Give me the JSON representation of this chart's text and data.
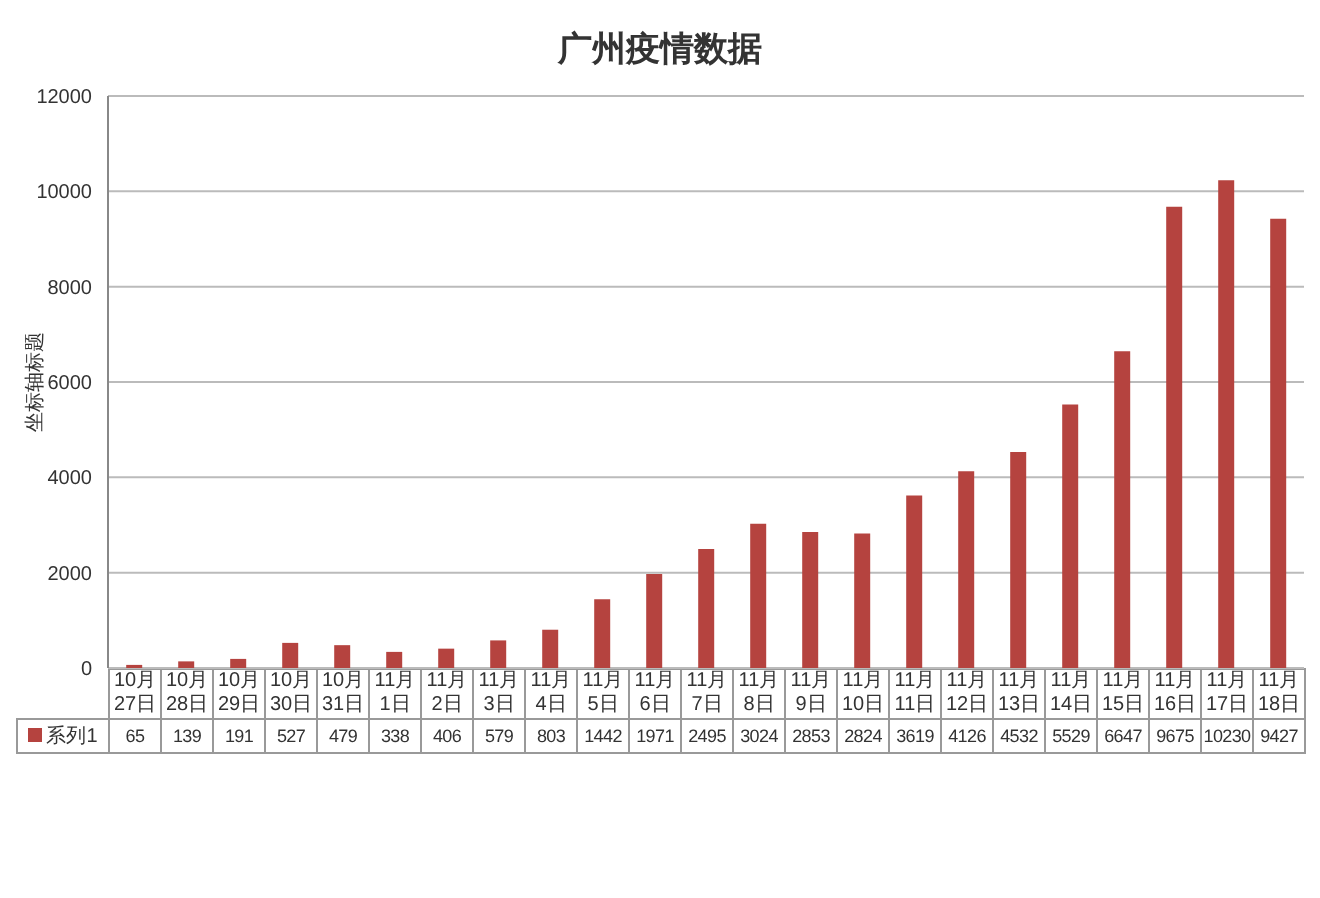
{
  "chart_data": {
    "type": "bar",
    "title": "广州疫情数据",
    "ylabel": "坐标轴标题",
    "categories": [
      "10月27日",
      "10月28日",
      "10月29日",
      "10月30日",
      "10月31日",
      "11月1日",
      "11月2日",
      "11月3日",
      "11月4日",
      "11月5日",
      "11月6日",
      "11月7日",
      "11月8日",
      "11月9日",
      "11月10日",
      "11月11日",
      "11月12日",
      "11月13日",
      "11月14日",
      "11月15日",
      "11月16日",
      "11月17日",
      "11月18日"
    ],
    "series": [
      {
        "name": "系列1",
        "color": "#b5433f",
        "values": [
          65,
          139,
          191,
          527,
          479,
          338,
          406,
          579,
          803,
          1442,
          1971,
          2495,
          3024,
          2853,
          2824,
          3619,
          4126,
          4532,
          5529,
          6647,
          9675,
          10230,
          9427
        ]
      }
    ],
    "ylim": [
      0,
      12000
    ],
    "yticks": [
      0,
      2000,
      4000,
      6000,
      8000,
      10000,
      12000
    ],
    "grid": "y",
    "legend": "bottom",
    "data_labels": true
  }
}
